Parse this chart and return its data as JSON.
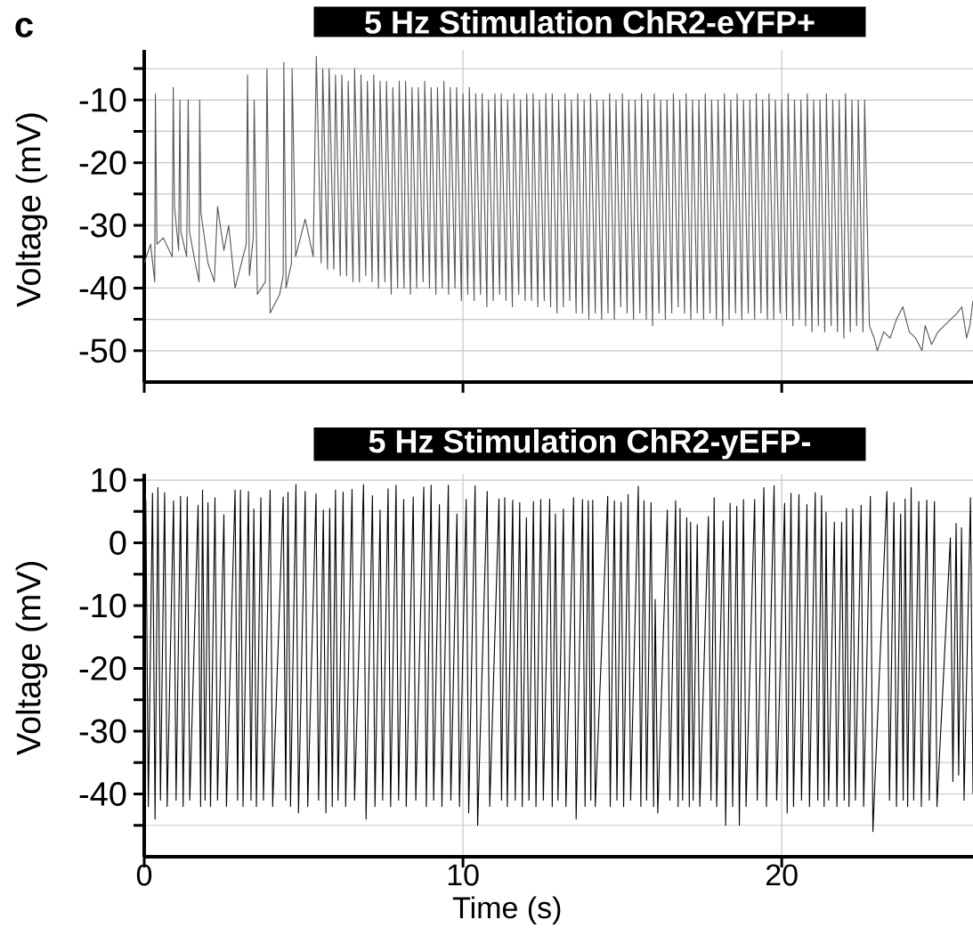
{
  "chart_data": [
    {
      "type": "line",
      "title": "5 Hz Stimulation   ChR2-eYFP+",
      "ylabel": "Voltage (mV)",
      "annotations": [
        "c"
      ],
      "color": "#555555",
      "grid": true,
      "tick_labels": "y",
      "xlim": [
        0,
        26
      ],
      "ylim": [
        -55,
        -2
      ],
      "xticks": [
        0,
        10,
        20
      ],
      "yticks": [
        -50,
        {
          "value": -45,
          "label": null
        },
        -40,
        {
          "value": -35,
          "label": null
        },
        -30,
        {
          "value": -25,
          "label": null
        },
        -20,
        {
          "value": -15,
          "label": null
        },
        -10,
        {
          "value": -5,
          "label": null
        }
      ],
      "x": [
        0,
        0.2,
        0.33,
        0.35,
        0.4,
        0.6,
        0.88,
        0.91,
        0.95,
        1.08,
        1.12,
        1.15,
        1.33,
        1.38,
        1.42,
        1.6,
        1.72,
        1.74,
        1.78,
        2.0,
        2.2,
        2.3,
        2.5,
        2.65,
        2.85,
        3.05,
        3.2,
        3.24,
        3.3,
        3.42,
        3.45,
        3.55,
        3.8,
        3.85,
        3.95,
        4.25,
        4.36,
        4.38,
        4.45,
        4.62,
        4.64,
        4.75,
        5.05,
        5.3,
        5.4,
        5.55,
        5.6,
        5.75,
        5.8,
        5.95,
        6.0,
        6.15,
        6.2,
        6.35,
        6.4,
        6.55,
        6.6,
        6.75,
        6.8,
        6.95,
        7.0,
        7.15,
        7.2,
        7.35,
        7.4,
        7.55,
        7.6,
        7.75,
        7.8,
        7.95,
        8.0,
        8.15,
        8.2,
        8.35,
        8.4,
        8.55,
        8.6,
        8.75,
        8.8,
        8.95,
        9.0,
        9.15,
        9.2,
        9.35,
        9.4,
        9.55,
        9.6,
        9.75,
        9.8,
        9.95,
        10.0,
        10.15,
        10.2,
        10.35,
        10.4,
        10.55,
        10.6,
        10.75,
        10.8,
        10.95,
        11.0,
        11.15,
        11.2,
        11.35,
        11.4,
        11.55,
        11.6,
        11.75,
        11.8,
        11.95,
        12.0,
        12.15,
        12.2,
        12.35,
        12.4,
        12.55,
        12.6,
        12.75,
        12.8,
        12.95,
        13.0,
        13.15,
        13.2,
        13.35,
        13.4,
        13.55,
        13.6,
        13.75,
        13.8,
        13.95,
        14.0,
        14.15,
        14.2,
        14.35,
        14.4,
        14.55,
        14.6,
        14.75,
        14.8,
        14.95,
        15.0,
        15.15,
        15.2,
        15.35,
        15.4,
        15.55,
        15.6,
        15.75,
        15.8,
        15.95,
        16.0,
        16.15,
        16.2,
        16.35,
        16.4,
        16.55,
        16.6,
        16.75,
        16.8,
        16.95,
        17.0,
        17.15,
        17.2,
        17.35,
        17.4,
        17.55,
        17.6,
        17.75,
        17.8,
        17.95,
        18.0,
        18.15,
        18.2,
        18.35,
        18.4,
        18.55,
        18.6,
        18.75,
        18.8,
        18.95,
        19.0,
        19.15,
        19.2,
        19.35,
        19.4,
        19.55,
        19.6,
        19.75,
        19.8,
        19.95,
        20.0,
        20.15,
        20.2,
        20.35,
        20.4,
        20.55,
        20.6,
        20.75,
        20.8,
        20.95,
        21.0,
        21.15,
        21.2,
        21.35,
        21.4,
        21.55,
        21.6,
        21.75,
        21.8,
        21.95,
        22.0,
        22.15,
        22.2,
        22.35,
        22.4,
        22.55,
        22.6,
        22.75,
        22.9,
        23.0,
        23.2,
        23.4,
        23.6,
        23.8,
        24.0,
        24.2,
        24.4,
        24.5,
        24.7,
        24.9,
        25.1,
        25.3,
        25.5,
        25.65,
        25.8,
        25.9,
        26.0
      ],
      "values": [
        -36,
        -33,
        -39,
        -9,
        -33,
        -32,
        -35,
        -8,
        -27,
        -34,
        -10,
        -31,
        -35,
        -10,
        -31,
        -36,
        -39,
        -10,
        -28,
        -36,
        -39,
        -27,
        -34,
        -30,
        -40,
        -36,
        -33,
        -6,
        -38,
        -32,
        -10,
        -41,
        -39,
        -5,
        -44,
        -41,
        -38,
        -4,
        -40,
        -36,
        -5,
        -35,
        -29,
        -35,
        -3,
        -36,
        -5,
        -37,
        -5,
        -37,
        -6,
        -38,
        -6,
        -38,
        -7,
        -39,
        -5,
        -39,
        -6,
        -38,
        -7,
        -39,
        -6,
        -40,
        -7,
        -39,
        -7,
        -41,
        -8,
        -40,
        -7,
        -40,
        -7,
        -41,
        -8,
        -40,
        -8,
        -39,
        -7,
        -40,
        -8,
        -41,
        -8,
        -40,
        -7,
        -41,
        -8,
        -40,
        -8,
        -42,
        -9,
        -41,
        -8,
        -42,
        -9,
        -41,
        -9,
        -43,
        -10,
        -42,
        -9,
        -41,
        -9,
        -42,
        -10,
        -43,
        -9,
        -41,
        -10,
        -42,
        -9,
        -42,
        -9,
        -43,
        -10,
        -42,
        -9,
        -43,
        -9,
        -44,
        -10,
        -43,
        -9,
        -42,
        -10,
        -44,
        -9,
        -44,
        -10,
        -45,
        -9,
        -44,
        -10,
        -45,
        -10,
        -44,
        -9,
        -45,
        -10,
        -43,
        -9,
        -44,
        -10,
        -45,
        -10,
        -44,
        -9,
        -45,
        -10,
        -46,
        -9,
        -44,
        -10,
        -45,
        -10,
        -44,
        -9,
        -43,
        -10,
        -44,
        -9,
        -45,
        -10,
        -44,
        -10,
        -45,
        -9,
        -44,
        -10,
        -45,
        -10,
        -46,
        -9,
        -45,
        -10,
        -44,
        -9,
        -45,
        -10,
        -44,
        -10,
        -45,
        -9,
        -44,
        -10,
        -45,
        -9,
        -45,
        -10,
        -44,
        -10,
        -45,
        -9,
        -46,
        -10,
        -45,
        -10,
        -46,
        -9,
        -47,
        -10,
        -46,
        -10,
        -47,
        -9,
        -46,
        -10,
        -47,
        -10,
        -48,
        -9,
        -47,
        -10,
        -46,
        -10,
        -47,
        -10,
        -46,
        -48,
        -50,
        -47,
        -48,
        -45,
        -43,
        -47,
        -48,
        -50,
        -46,
        -49,
        -47,
        -46,
        -45,
        -44,
        -43,
        -48,
        -46,
        -42
      ]
    },
    {
      "type": "line",
      "title": "5 Hz Stimulation   ChR2-yEFP-",
      "xlabel": "Time (s)",
      "ylabel": "Voltage (mV)",
      "color": "#000000",
      "grid": true,
      "xlim": [
        0,
        26
      ],
      "ylim": [
        -50,
        11
      ],
      "xticks": [
        0,
        10,
        20
      ],
      "yticks": [
        {
          "value": -45,
          "label": null
        },
        -40,
        {
          "value": -35,
          "label": null
        },
        -30,
        {
          "value": -25,
          "label": null
        },
        -20,
        {
          "value": -15,
          "label": null
        },
        -10,
        {
          "value": -5,
          "label": null
        },
        0,
        {
          "value": 5,
          "label": null
        },
        10
      ],
      "x": [
        0,
        0.05,
        0.13,
        0.26,
        0.34,
        0.43,
        0.51,
        0.64,
        0.72,
        0.92,
        1.0,
        1.14,
        1.22,
        1.35,
        1.43,
        1.69,
        1.77,
        1.83,
        1.91,
        2.0,
        2.08,
        2.22,
        2.3,
        2.5,
        2.58,
        2.85,
        2.93,
        3.02,
        3.1,
        3.27,
        3.35,
        3.44,
        3.52,
        3.66,
        3.74,
        3.95,
        4.03,
        4.36,
        4.44,
        4.51,
        4.59,
        4.76,
        4.84,
        5.05,
        5.13,
        5.39,
        5.47,
        5.62,
        5.7,
        5.82,
        5.9,
        6.0,
        6.08,
        6.24,
        6.32,
        6.52,
        6.6,
        6.88,
        6.96,
        7.16,
        7.24,
        7.4,
        7.48,
        7.65,
        7.73,
        7.9,
        7.98,
        8.14,
        8.22,
        8.44,
        8.52,
        8.77,
        8.85,
        9.0,
        9.08,
        9.26,
        9.34,
        9.54,
        9.62,
        9.81,
        9.89,
        10.1,
        10.18,
        10.38,
        10.46,
        10.76,
        10.84,
        11.13,
        11.21,
        11.31,
        11.39,
        11.56,
        11.64,
        11.78,
        11.86,
        11.99,
        12.07,
        12.21,
        12.29,
        12.44,
        12.52,
        12.72,
        12.8,
        12.9,
        12.98,
        13.15,
        13.23,
        13.47,
        13.55,
        13.75,
        13.83,
        13.93,
        14.01,
        14.07,
        14.15,
        14.54,
        14.62,
        14.75,
        14.83,
        14.96,
        15.04,
        15.18,
        15.26,
        15.5,
        15.58,
        15.68,
        15.76,
        15.9,
        15.98,
        16.03,
        16.11,
        16.41,
        16.49,
        16.67,
        16.75,
        16.81,
        16.89,
        17.02,
        17.1,
        17.14,
        17.22,
        17.35,
        17.43,
        17.7,
        17.78,
        17.88,
        17.96,
        18.16,
        18.24,
        18.38,
        18.46,
        18.59,
        18.67,
        18.8,
        18.88,
        19.15,
        19.23,
        19.44,
        19.52,
        19.76,
        19.84,
        20.09,
        20.17,
        20.29,
        20.37,
        20.54,
        20.62,
        20.79,
        20.87,
        21.05,
        21.13,
        21.25,
        21.33,
        21.39,
        21.47,
        21.65,
        21.73,
        21.88,
        21.96,
        22.03,
        22.11,
        22.23,
        22.31,
        22.49,
        22.57,
        22.78,
        22.86,
        23.3,
        23.38,
        23.52,
        23.6,
        23.73,
        23.81,
        23.87,
        23.95,
        24.06,
        24.14,
        24.3,
        24.38,
        24.55,
        24.63,
        24.79,
        24.87,
        25.29,
        25.37,
        25.47,
        25.55,
        25.64,
        25.72,
        25.92,
        26.0
      ],
      "values": [
        -35,
        6.8,
        -42,
        7.9,
        -44,
        8.8,
        -41,
        8,
        -42,
        6.7,
        -41,
        7.4,
        -42,
        7.3,
        -41,
        6,
        -42,
        8.4,
        -41,
        6.4,
        -42,
        7.2,
        -41,
        4.5,
        -42,
        8.4,
        -41,
        8.4,
        -42,
        8.2,
        -41,
        5.4,
        -42,
        7.2,
        -41,
        8.4,
        -42,
        7.3,
        -41,
        8.1,
        -42,
        9.3,
        -43,
        8.2,
        -42,
        7.8,
        -41,
        5.2,
        -43,
        5.5,
        -42,
        8.4,
        -41,
        8.1,
        -42,
        8.5,
        -41,
        9.3,
        -44,
        7.5,
        -42,
        5.2,
        -41,
        8.6,
        -42,
        9.2,
        -41,
        6.9,
        -42,
        7.3,
        -41,
        8.9,
        -42,
        9.2,
        -41,
        6.1,
        -42,
        9.2,
        -41,
        4.6,
        -42,
        6.9,
        -43,
        9.1,
        -45,
        8.2,
        -42,
        7,
        -41,
        7.2,
        -42,
        6.8,
        -41,
        6.4,
        -42,
        4,
        -41,
        6.6,
        -42,
        6.9,
        -41,
        7,
        -42,
        4.6,
        -41,
        5.4,
        -42,
        7.2,
        -44,
        6.9,
        -42,
        6.7,
        -41,
        6.8,
        -42,
        7.4,
        -42,
        6.7,
        -41,
        6.5,
        -42,
        7.7,
        -41,
        9,
        -42,
        6.7,
        -41,
        6.4,
        -42,
        -9,
        -43,
        5.2,
        -41,
        6.7,
        -42,
        5.5,
        -41,
        4,
        -42,
        3.3,
        -41,
        2.9,
        -42,
        4.2,
        -41,
        7.2,
        -42,
        3.5,
        -45,
        6.3,
        -42,
        5.8,
        -45,
        6.9,
        -42,
        6.9,
        -41,
        8.8,
        -42,
        9.1,
        -41,
        6.3,
        -43,
        7.9,
        -42,
        7.7,
        -41,
        6.1,
        -42,
        8,
        -41,
        7.5,
        -42,
        4.9,
        -41,
        3.3,
        -42,
        3.3,
        -41,
        5.5,
        -42,
        5.4,
        -41,
        6,
        -42,
        7.4,
        -46,
        8.2,
        -41,
        6.4,
        -42,
        4.6,
        -41,
        7,
        -42,
        8.8,
        -41,
        6.6,
        -42,
        6.8,
        -41,
        6.6,
        -42,
        0.8,
        -38,
        3.1,
        -37,
        2.4,
        -41,
        7.2,
        -40
      ]
    }
  ]
}
